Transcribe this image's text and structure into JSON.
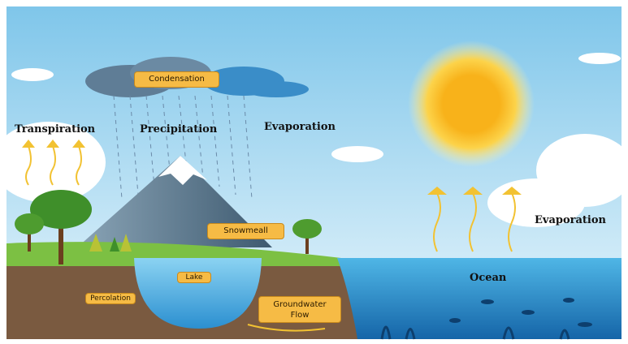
{
  "labels": {
    "condensation": "Condensation",
    "transpiration": "Transpiration",
    "precipitation": "Precipitation",
    "evaporation_top": "Evaporation",
    "evaporation_right": "Evaporation",
    "snowmelt": "Snowmeall",
    "lake": "Lake",
    "percolation": "Percolation",
    "groundwater": "Groundwater Flow",
    "ocean": "Ocean"
  }
}
